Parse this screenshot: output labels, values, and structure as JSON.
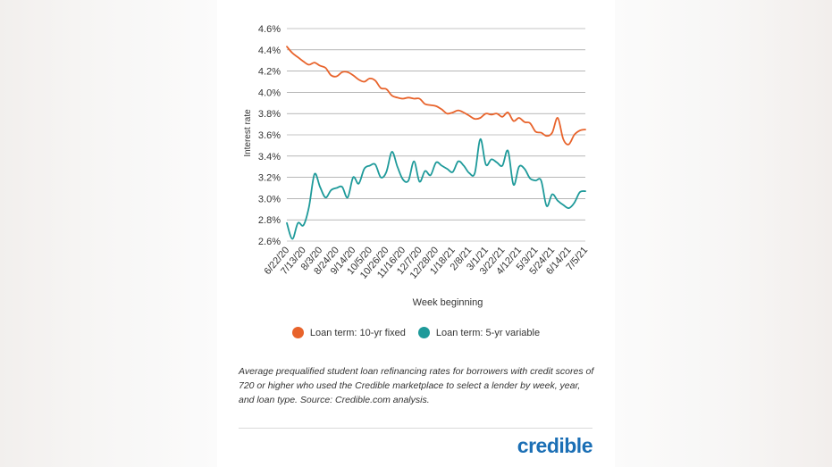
{
  "chart_data": {
    "type": "line",
    "xlabel": "Week beginning",
    "ylabel": "Interest rate",
    "ylim": [
      2.6,
      4.6
    ],
    "y_ticks": [
      "2.6%",
      "2.8%",
      "3.0%",
      "3.2%",
      "3.4%",
      "3.6%",
      "3.8%",
      "4.0%",
      "4.2%",
      "4.4%",
      "4.6%"
    ],
    "grid": true,
    "legend_position": "bottom",
    "x_tick_labels": [
      "6/22/20",
      "7/13/20",
      "8/3/20",
      "8/24/20",
      "9/14/20",
      "10/5/20",
      "10/26/20",
      "11/16/20",
      "12/7/20",
      "12/28/20",
      "1/18/21",
      "2/8/21",
      "3/1/21",
      "3/22/21",
      "4/12/21",
      "5/3/21",
      "5/24/21",
      "6/14/21",
      "7/5/21"
    ],
    "series": [
      {
        "name": "Loan term: 10-yr fixed",
        "color": "#e8632b",
        "values": [
          4.43,
          4.37,
          4.33,
          4.29,
          4.26,
          4.28,
          4.25,
          4.23,
          4.16,
          4.15,
          4.19,
          4.19,
          4.16,
          4.12,
          4.1,
          4.13,
          4.11,
          4.04,
          4.03,
          3.97,
          3.95,
          3.94,
          3.95,
          3.94,
          3.94,
          3.89,
          3.88,
          3.87,
          3.84,
          3.8,
          3.81,
          3.83,
          3.81,
          3.78,
          3.75,
          3.76,
          3.8,
          3.79,
          3.8,
          3.77,
          3.81,
          3.73,
          3.76,
          3.72,
          3.71,
          3.63,
          3.62,
          3.59,
          3.62,
          3.76,
          3.56,
          3.51,
          3.6,
          3.64,
          3.65
        ]
      },
      {
        "name": "Loan term: 5-yr variable",
        "color": "#1e9a9a",
        "values": [
          2.77,
          2.62,
          2.77,
          2.75,
          2.92,
          3.23,
          3.11,
          3.01,
          3.08,
          3.1,
          3.11,
          3.01,
          3.2,
          3.14,
          3.28,
          3.31,
          3.32,
          3.2,
          3.25,
          3.44,
          3.3,
          3.18,
          3.17,
          3.35,
          3.16,
          3.26,
          3.22,
          3.34,
          3.31,
          3.28,
          3.25,
          3.35,
          3.31,
          3.24,
          3.24,
          3.56,
          3.32,
          3.37,
          3.34,
          3.31,
          3.45,
          3.13,
          3.3,
          3.28,
          3.19,
          3.17,
          3.17,
          2.93,
          3.04,
          2.98,
          2.94,
          2.91,
          2.96,
          3.06,
          3.07
        ]
      }
    ]
  },
  "caption": "Average prequalified student loan refinancing rates for borrowers with credit scores of 720 or higher who used the Credible marketplace to select a lender by week, year, and loan type. Source: Credible.com analysis.",
  "brand": "credible"
}
